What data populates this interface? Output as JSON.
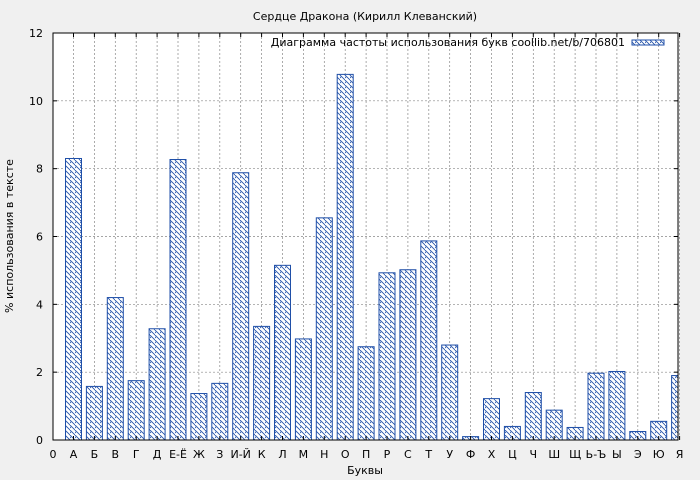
{
  "chart_data": {
    "type": "bar",
    "title": "Сердце Дракона (Кирилл Клеванский)",
    "xlabel": "Буквы",
    "ylabel": "% использования в тексте",
    "ylim": [
      0,
      12
    ],
    "yticks": [
      0,
      2,
      4,
      6,
      8,
      10,
      12
    ],
    "x_origin_label": "0",
    "grid": true,
    "legend_position": "top-right",
    "bar_color": "#1f4fa8",
    "categories": [
      "А",
      "Б",
      "В",
      "Г",
      "Д",
      "Е-Ё",
      "Ж",
      "З",
      "И-Й",
      "К",
      "Л",
      "М",
      "Н",
      "О",
      "П",
      "Р",
      "С",
      "Т",
      "У",
      "Ф",
      "Х",
      "Ц",
      "Ч",
      "Ш",
      "Щ",
      "Ь-Ъ",
      "Ы",
      "Э",
      "Ю",
      "Я"
    ],
    "series": [
      {
        "name": "Диаграмма частоты использования букв coollib.net/b/706801",
        "values": [
          8.3,
          1.58,
          4.2,
          1.75,
          3.28,
          8.27,
          1.37,
          1.67,
          7.88,
          3.35,
          5.15,
          2.98,
          6.55,
          10.78,
          2.75,
          4.93,
          5.02,
          5.87,
          2.8,
          0.1,
          1.22,
          0.4,
          1.4,
          0.88,
          0.37,
          1.97,
          2.02,
          0.25,
          0.55,
          1.9
        ]
      }
    ]
  }
}
